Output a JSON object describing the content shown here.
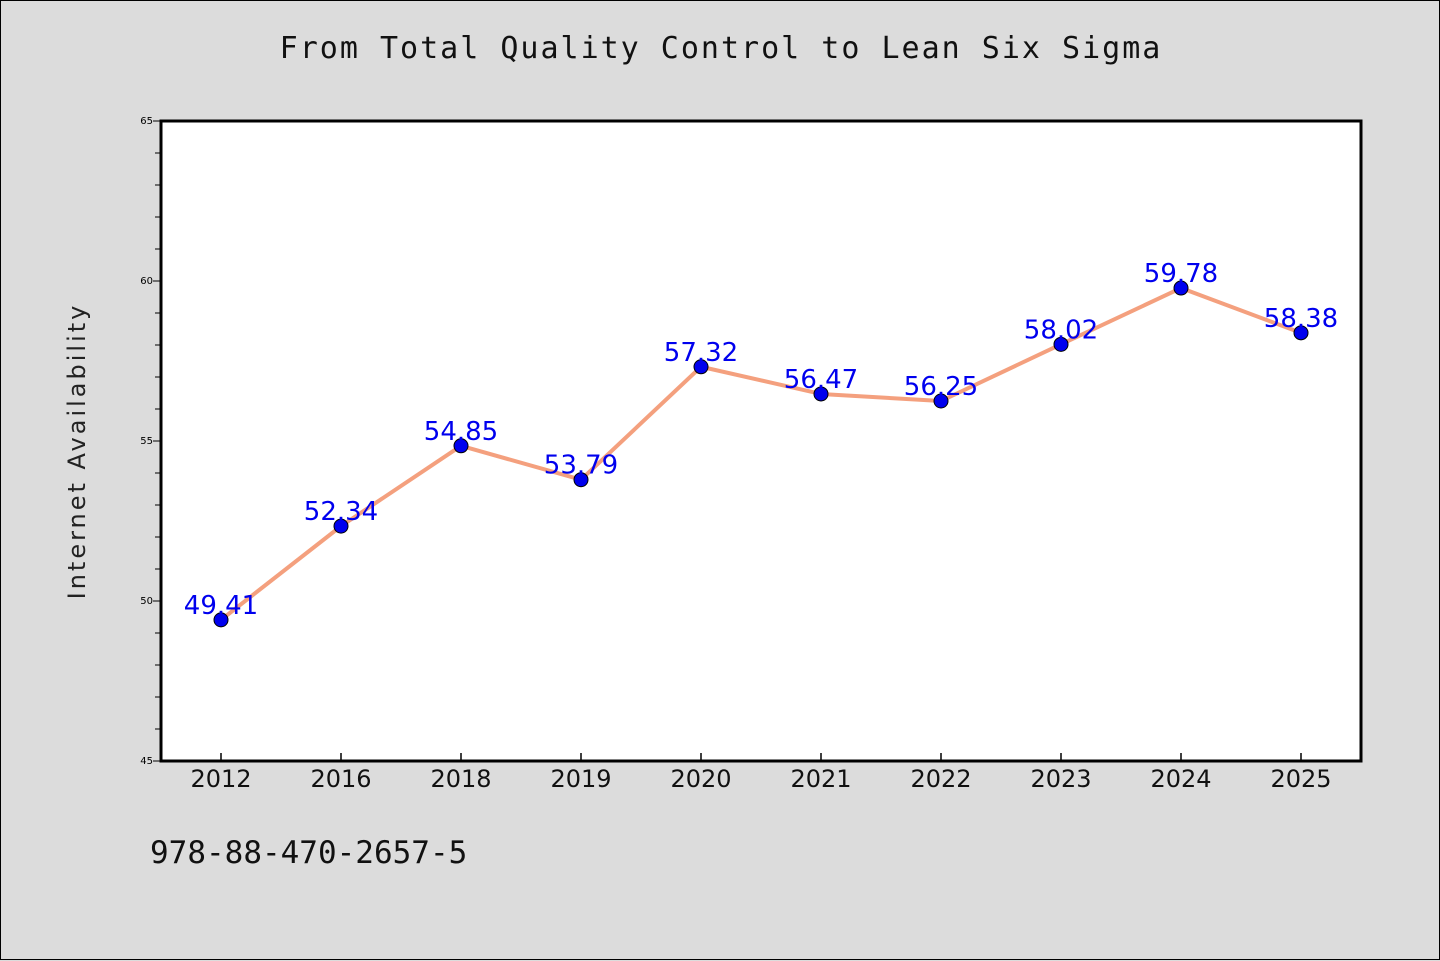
{
  "chart_data": {
    "type": "line",
    "title": "From Total Quality Control to Lean Six Sigma",
    "ylabel": "Internet Availability",
    "xlabel": "",
    "categories": [
      "2012",
      "2016",
      "2018",
      "2019",
      "2020",
      "2021",
      "2022",
      "2023",
      "2024",
      "2025"
    ],
    "values": [
      49.41,
      52.34,
      54.85,
      53.79,
      57.32,
      56.47,
      56.25,
      58.02,
      59.78,
      58.38
    ],
    "data_labels": [
      "49.41",
      "52.34",
      "54.85",
      "53.79",
      "57.32",
      "56.47",
      "56.25",
      "58.02",
      "59.78",
      "58.38"
    ],
    "ylim": [
      45,
      65
    ],
    "yticks": [
      "45",
      "50",
      "55",
      "60",
      "65"
    ],
    "grid": false,
    "legend": "none",
    "colors": {
      "line": "#f4a07e",
      "marker": "#0000ee",
      "marker_edge": "#000000",
      "data_label": "#0000ee",
      "plot_background": "#ffffff",
      "page_background": "#dcdcdc"
    }
  },
  "footer": {
    "text": "978-88-470-2657-5"
  }
}
